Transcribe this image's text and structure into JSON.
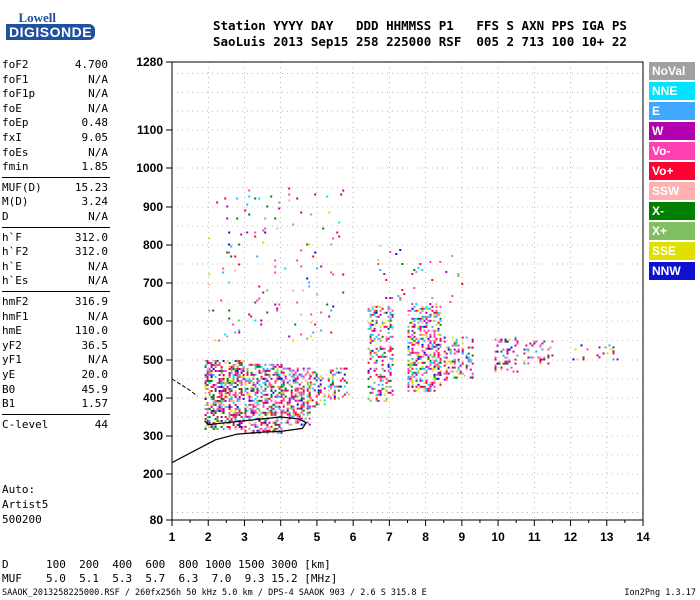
{
  "logo": {
    "line1": "Lowell",
    "line2": "DIGISONDE"
  },
  "header": {
    "line1": "Station YYYY DAY   DDD HHMMSS P1   FFS S AXN PPS IGA PS",
    "line2": "SaoLuis 2013 Sep15 258 225000 RSF  005 2 713 100 10+ 22"
  },
  "params": [
    {
      "name": "foF2",
      "value": "4.700"
    },
    {
      "name": "foF1",
      "value": "N/A"
    },
    {
      "name": "foF1p",
      "value": "N/A"
    },
    {
      "name": "foE",
      "value": "N/A"
    },
    {
      "name": "foEp",
      "value": "0.48"
    },
    {
      "name": "fxI",
      "value": "9.05"
    },
    {
      "name": "foEs",
      "value": "N/A"
    },
    {
      "name": "fmin",
      "value": "1.85"
    },
    {
      "name": "MUF(D)",
      "value": "15.23"
    },
    {
      "name": "M(D)",
      "value": "3.24"
    },
    {
      "name": "D",
      "value": "N/A"
    },
    {
      "name": "h`F",
      "value": "312.0"
    },
    {
      "name": "h`F2",
      "value": "312.0"
    },
    {
      "name": "h`E",
      "value": "N/A"
    },
    {
      "name": "h`Es",
      "value": "N/A"
    },
    {
      "name": "hmF2",
      "value": "316.9"
    },
    {
      "name": "hmF1",
      "value": "N/A"
    },
    {
      "name": "hmE",
      "value": "110.0"
    },
    {
      "name": "yF2",
      "value": "36.5"
    },
    {
      "name": "yF1",
      "value": "N/A"
    },
    {
      "name": "yE",
      "value": "20.0"
    },
    {
      "name": "B0",
      "value": "45.9"
    },
    {
      "name": "B1",
      "value": "1.57"
    },
    {
      "name": "C-level",
      "value": "44"
    }
  ],
  "auto_lines": [
    "Auto:",
    "Artist5",
    "500200"
  ],
  "muf_table": {
    "d_label": "D",
    "d_values": "100  200  400  600  800 1000 1500 3000 [km]",
    "muf_label": "MUF",
    "muf_values": "5.0  5.1  5.3  5.7  6.3  7.0  9.3 15.2 [MHz]"
  },
  "footer": "SAAOK_2013258225000.RSF / 260fx256h 50 kHz 5.0 km / DPS-4 SAAOK 903 / 2.6 S 315.8 E",
  "version": "Ion2Png 1.3.17",
  "legend": [
    {
      "label": "NoVal",
      "color": "#a0a0a0"
    },
    {
      "label": "NNE",
      "color": "#00e5ff"
    },
    {
      "label": "E",
      "color": "#40a8ff"
    },
    {
      "label": "W",
      "color": "#b000b0"
    },
    {
      "label": "Vo-",
      "color": "#ff40b0"
    },
    {
      "label": "Vo+",
      "color": "#ff0030"
    },
    {
      "label": "SSW",
      "color": "#ffb0b0"
    },
    {
      "label": "X-",
      "color": "#008000"
    },
    {
      "label": "X+",
      "color": "#80c060"
    },
    {
      "label": "SSE",
      "color": "#e0e000"
    },
    {
      "label": "NNW",
      "color": "#1010d0"
    }
  ],
  "chart_data": {
    "type": "scatter",
    "title": "",
    "xlabel": "",
    "ylabel": "",
    "x_ticks": [
      1,
      2,
      3,
      4,
      5,
      6,
      7,
      8,
      9,
      10,
      11,
      12,
      13,
      14
    ],
    "y_ticks": [
      80,
      200,
      300,
      400,
      500,
      600,
      700,
      800,
      900,
      1000,
      1100,
      1280
    ],
    "xlim": [
      1,
      14
    ],
    "ylim": [
      80,
      1280
    ],
    "grid": true,
    "clusters": [
      {
        "x_range": [
          1.9,
          3.0
        ],
        "y_range": [
          320,
          500
        ],
        "density": 0.9
      },
      {
        "x_range": [
          3.0,
          4.0
        ],
        "y_range": [
          310,
          490
        ],
        "density": 0.9
      },
      {
        "x_range": [
          4.0,
          4.8
        ],
        "y_range": [
          330,
          480
        ],
        "density": 0.85
      },
      {
        "x_range": [
          4.8,
          5.2
        ],
        "y_range": [
          380,
          470
        ],
        "density": 0.6
      },
      {
        "x_range": [
          5.3,
          5.9
        ],
        "y_range": [
          400,
          480
        ],
        "density": 0.5
      },
      {
        "x_range": [
          6.4,
          7.1
        ],
        "y_range": [
          390,
          640
        ],
        "density": 0.6
      },
      {
        "x_range": [
          7.5,
          8.4
        ],
        "y_range": [
          420,
          640
        ],
        "density": 0.75
      },
      {
        "x_range": [
          8.5,
          9.3
        ],
        "y_range": [
          450,
          560
        ],
        "density": 0.6
      },
      {
        "x_range": [
          9.9,
          10.6
        ],
        "y_range": [
          470,
          560
        ],
        "density": 0.4
      },
      {
        "x_range": [
          10.7,
          11.5
        ],
        "y_range": [
          490,
          550
        ],
        "density": 0.4
      },
      {
        "x_range": [
          12.0,
          13.3
        ],
        "y_range": [
          500,
          540
        ],
        "density": 0.15
      },
      {
        "x_range": [
          2.0,
          5.7
        ],
        "y_range": [
          550,
          950
        ],
        "density": 0.05
      },
      {
        "x_range": [
          6.5,
          9.0
        ],
        "y_range": [
          640,
          800
        ],
        "density": 0.06
      }
    ],
    "trace": {
      "name": "h`F2 profile",
      "points": [
        [
          1.0,
          230
        ],
        [
          1.6,
          260
        ],
        [
          2.2,
          290
        ],
        [
          2.8,
          305
        ],
        [
          3.5,
          310
        ],
        [
          4.0,
          312
        ],
        [
          4.6,
          320
        ],
        [
          4.7,
          335
        ],
        [
          4.5,
          345
        ],
        [
          4.0,
          350
        ],
        [
          3.2,
          342
        ],
        [
          2.5,
          335
        ],
        [
          2.0,
          330
        ],
        [
          1.9,
          340
        ]
      ]
    },
    "low_trace": {
      "points": [
        [
          1.0,
          450
        ],
        [
          1.5,
          420
        ],
        [
          1.7,
          405
        ]
      ]
    }
  }
}
